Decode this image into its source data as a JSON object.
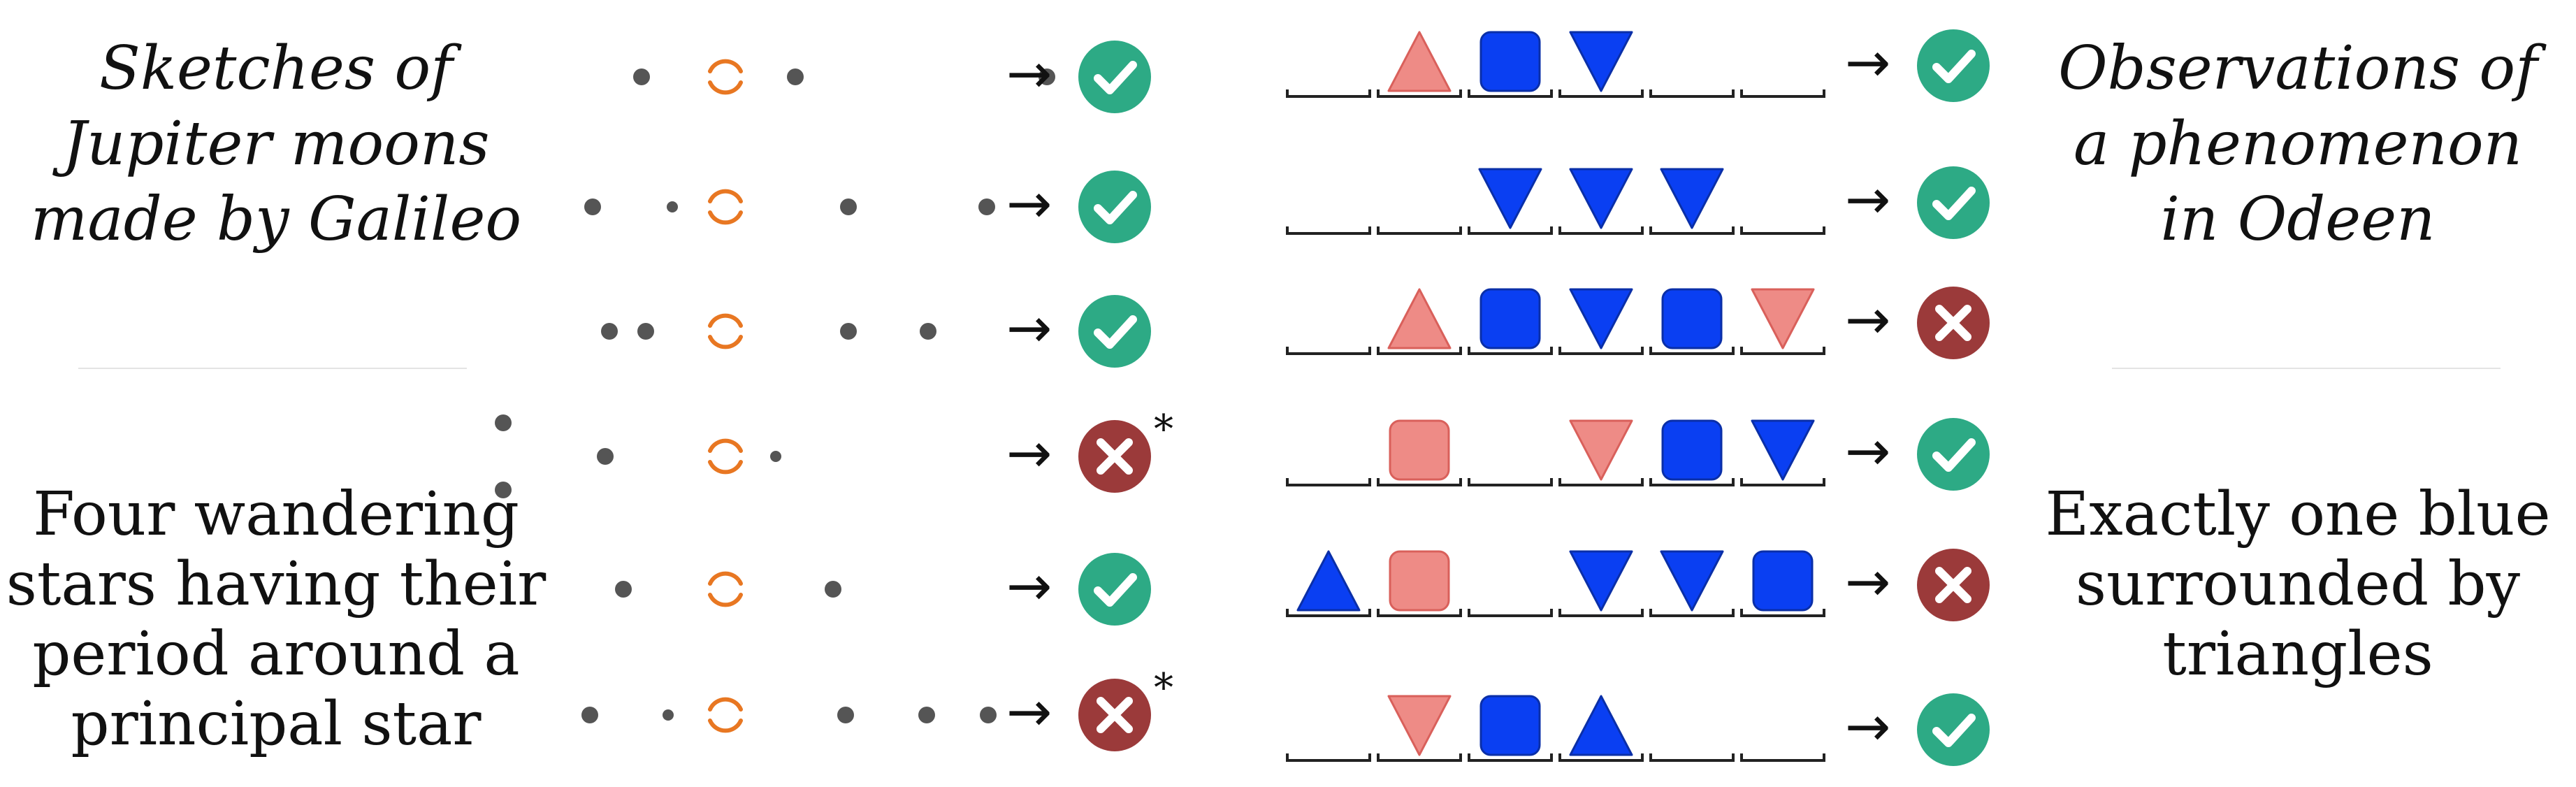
{
  "left_panel": {
    "title_lines": [
      "Sketches of",
      "Jupiter moons",
      "made by Galileo"
    ],
    "rule_lines": [
      "Four wandering",
      "stars having their",
      "period around a",
      "principal star"
    ]
  },
  "right_panel": {
    "title_lines": [
      "Observations of",
      "a phenomenon",
      "in Odeen"
    ],
    "rule_lines": [
      "Exactly one blue",
      "surrounded by",
      "triangles"
    ]
  },
  "arrow_glyph": "→",
  "asterisk": "*",
  "colors": {
    "dot": "#555555",
    "planet": "#e87722",
    "check": "#2daa85",
    "cross": "#9b3a3a",
    "blue_fill": "#0a3ff2",
    "blue_stroke": "#0a2fa8",
    "pink_fill": "#ee8b86",
    "pink_stroke": "#d9605b",
    "slot_line": "#222222"
  },
  "icons": {
    "valid": "checkmark-circle-icon",
    "invalid": "cross-circle-icon",
    "planet": "jupiter-icon",
    "moon": "moon-dot-icon"
  },
  "galileo_rows": [
    {
      "moons": [
        {
          "pos": -6
        },
        {
          "pos": 5
        },
        {
          "pos": 23
        }
      ],
      "valid": true,
      "asterisk": false
    },
    {
      "moons": [
        {
          "pos": -9.5
        },
        {
          "pos": -3.8
        },
        {
          "pos": 8.8
        },
        {
          "pos": 18.7
        }
      ],
      "valid": true,
      "asterisk": false
    },
    {
      "moons": [
        {
          "pos": -8.3
        },
        {
          "pos": -5.7
        },
        {
          "pos": 8.8
        },
        {
          "pos": 14.5
        }
      ],
      "valid": true,
      "asterisk": false
    },
    {
      "moons": [
        {
          "pos": -15.9,
          "dy": -1
        },
        {
          "pos": -15.9,
          "dy": 1
        },
        {
          "pos": -8.6
        },
        {
          "pos": 3.6
        }
      ],
      "valid": false,
      "asterisk": true
    },
    {
      "moons": [
        {
          "pos": -7.3
        },
        {
          "pos": 7.7
        }
      ],
      "valid": true,
      "asterisk": false
    },
    {
      "moons": [
        {
          "pos": -9.7
        },
        {
          "pos": -4.1
        },
        {
          "pos": 8.6
        },
        {
          "pos": 14.4
        },
        {
          "pos": 18.8
        }
      ],
      "valid": false,
      "asterisk": true
    }
  ],
  "odeen_rows": [
    {
      "slots": [
        "empty",
        "pink-up",
        "blue-square",
        "blue-down",
        "empty",
        "empty"
      ],
      "valid": true
    },
    {
      "slots": [
        "empty",
        "empty",
        "blue-down",
        "blue-down",
        "blue-down",
        "empty"
      ],
      "valid": true
    },
    {
      "slots": [
        "empty",
        "pink-up",
        "blue-square",
        "blue-down",
        "blue-square",
        "pink-down"
      ],
      "valid": false
    },
    {
      "slots": [
        "empty",
        "pink-square",
        "empty",
        "pink-down",
        "blue-square",
        "blue-down"
      ],
      "valid": true
    },
    {
      "slots": [
        "blue-up",
        "pink-square",
        "empty",
        "blue-down",
        "blue-down",
        "blue-square"
      ],
      "valid": false
    },
    {
      "slots": [
        "empty",
        "pink-down",
        "blue-square",
        "blue-up",
        "empty",
        "empty"
      ],
      "valid": true
    }
  ]
}
